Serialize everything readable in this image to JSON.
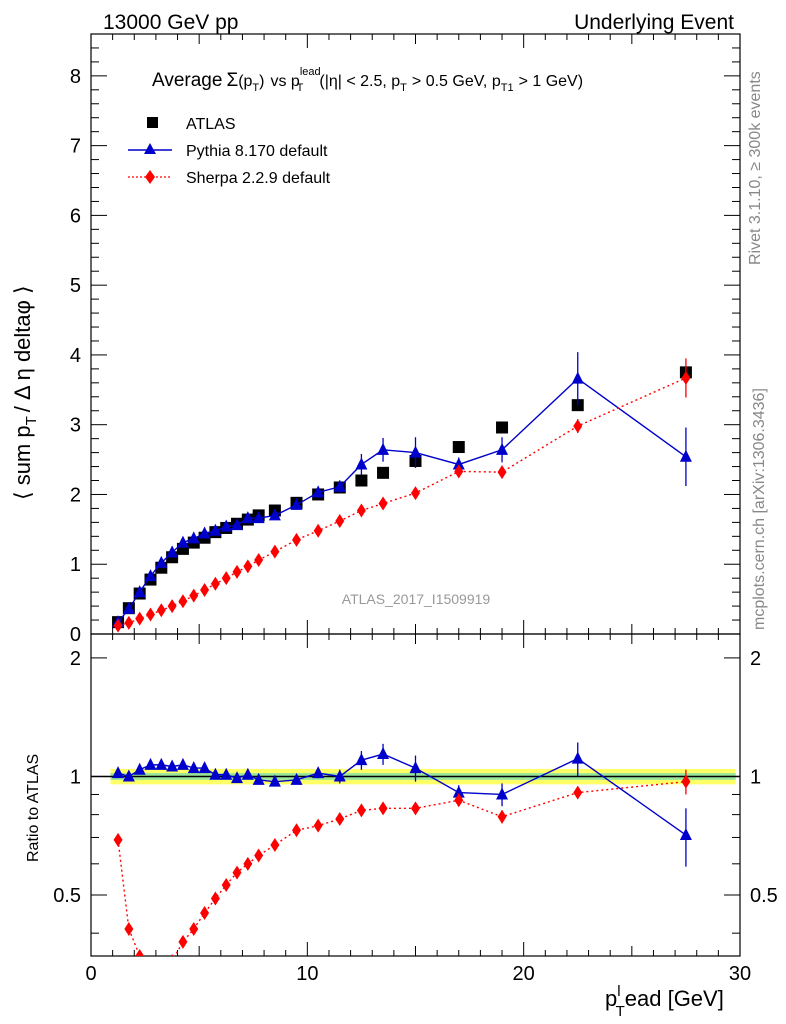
{
  "header": {
    "left": "13000 GeV pp",
    "right": "Underlying Event"
  },
  "side": {
    "rivet": "Rivet 3.1.10, ≥ 300k events",
    "mcplots": "mcplots.cern.ch [arXiv:1306.3436]"
  },
  "watermark": "ATLAS_2017_I1509919",
  "title": {
    "prefix": "Average",
    "sigma": "Σ",
    "p": "(p",
    "p_sub": "T",
    "close": ")",
    "vs": "vs p",
    "lead_sub": "T",
    "lead_sup": "lead",
    "cut_open": "(|η| < 2.5, p",
    "cut_sub1": "T",
    "cut_mid": "> 0.5 GeV, p",
    "cut_sub2": "T1",
    "cut_end": "> 1 GeV)"
  },
  "axes": {
    "ylabel_main": "⟨ sum p",
    "ylabel_main_sub": "T",
    "ylabel_main_rest": "/ Δ η deltaφ ⟩",
    "ylabel_ratio": "Ratio to ATLAS",
    "xlabel_p": "p",
    "xlabel_sub": "T",
    "xlabel_sup": "l",
    "xlabel_rest": "ead [GeV]"
  },
  "colors": {
    "atlas": "#000000",
    "pythia": "#0000cc",
    "sherpa": "#ff0000",
    "band_outer": "#ffff66",
    "band_inner": "#99e699",
    "refline": "#000000"
  },
  "chart_data": {
    "type": "scatter",
    "xlim": [
      0,
      30
    ],
    "main": {
      "ylim": [
        0,
        8.6
      ],
      "yticks": [
        0,
        1,
        2,
        3,
        4,
        5,
        6,
        7,
        8
      ]
    },
    "ratio": {
      "ylim": [
        0.35,
        2.3
      ],
      "log_scale": true,
      "yticks": [
        0.5,
        1,
        2
      ]
    },
    "xticks": [
      0,
      10,
      20,
      30
    ],
    "series": [
      {
        "name": "ATLAS",
        "marker": "square",
        "x": [
          1.25,
          1.75,
          2.25,
          2.75,
          3.25,
          3.75,
          4.25,
          4.75,
          5.25,
          5.75,
          6.25,
          6.75,
          7.25,
          7.75,
          8.5,
          9.5,
          10.5,
          11.5,
          12.5,
          13.5,
          15,
          17,
          19,
          22.5,
          27.5
        ],
        "y": [
          0.17,
          0.37,
          0.58,
          0.78,
          0.95,
          1.1,
          1.22,
          1.31,
          1.38,
          1.46,
          1.52,
          1.58,
          1.64,
          1.7,
          1.77,
          1.88,
          2.0,
          2.1,
          2.2,
          2.31,
          2.48,
          2.68,
          2.96,
          3.28,
          3.75
        ]
      },
      {
        "name": "Pythia 8.170 default",
        "marker": "triangle",
        "x": [
          1.25,
          1.75,
          2.25,
          2.75,
          3.25,
          3.75,
          4.25,
          4.75,
          5.25,
          5.75,
          6.25,
          6.75,
          7.25,
          7.75,
          8.5,
          9.5,
          10.5,
          11.5,
          12.5,
          13.5,
          15,
          17,
          19,
          22.5,
          27.5
        ],
        "y": [
          0.17,
          0.36,
          0.6,
          0.83,
          1.02,
          1.17,
          1.31,
          1.37,
          1.44,
          1.48,
          1.54,
          1.56,
          1.66,
          1.66,
          1.7,
          1.85,
          2.03,
          2.11,
          2.43,
          2.64,
          2.6,
          2.43,
          2.64,
          3.66,
          2.54
        ],
        "err": [
          0.02,
          0.02,
          0.03,
          0.03,
          0.03,
          0.04,
          0.04,
          0.04,
          0.04,
          0.04,
          0.04,
          0.04,
          0.04,
          0.04,
          0.05,
          0.06,
          0.08,
          0.09,
          0.15,
          0.17,
          0.22,
          0.1,
          0.18,
          0.38,
          0.42
        ]
      },
      {
        "name": "Sherpa 2.2.9 default",
        "marker": "diamond",
        "x": [
          1.25,
          1.75,
          2.25,
          2.75,
          3.25,
          3.75,
          4.25,
          4.75,
          5.25,
          5.75,
          6.25,
          6.75,
          7.25,
          7.75,
          8.5,
          9.5,
          10.5,
          11.5,
          12.5,
          13.5,
          15,
          17,
          19,
          22.5,
          27.5
        ],
        "y": [
          0.12,
          0.16,
          0.22,
          0.28,
          0.34,
          0.4,
          0.47,
          0.55,
          0.63,
          0.72,
          0.8,
          0.89,
          0.97,
          1.06,
          1.18,
          1.35,
          1.48,
          1.62,
          1.77,
          1.87,
          2.02,
          2.33,
          2.32,
          2.98,
          3.67
        ],
        "err": [
          0.01,
          0.01,
          0.01,
          0.01,
          0.01,
          0.01,
          0.01,
          0.01,
          0.01,
          0.01,
          0.01,
          0.01,
          0.01,
          0.01,
          0.02,
          0.02,
          0.03,
          0.03,
          0.04,
          0.04,
          0.05,
          0.08,
          0.08,
          0.1,
          0.28
        ]
      }
    ],
    "ratio_series": [
      {
        "name": "Pythia 8.170 default",
        "x": [
          1.25,
          1.75,
          2.25,
          2.75,
          3.25,
          3.75,
          4.25,
          4.75,
          5.25,
          5.75,
          6.25,
          6.75,
          7.25,
          7.75,
          8.5,
          9.5,
          10.5,
          11.5,
          12.5,
          13.5,
          15,
          17,
          19,
          22.5,
          27.5
        ],
        "y": [
          1.02,
          1.0,
          1.04,
          1.07,
          1.07,
          1.06,
          1.07,
          1.05,
          1.05,
          1.01,
          1.01,
          0.99,
          1.01,
          0.98,
          0.97,
          0.98,
          1.02,
          1.0,
          1.1,
          1.14,
          1.05,
          0.91,
          0.9,
          1.11,
          0.71
        ],
        "err": [
          0.02,
          0.02,
          0.02,
          0.02,
          0.02,
          0.02,
          0.02,
          0.02,
          0.02,
          0.02,
          0.02,
          0.02,
          0.02,
          0.02,
          0.02,
          0.02,
          0.03,
          0.04,
          0.06,
          0.07,
          0.08,
          0.04,
          0.06,
          0.11,
          0.12
        ]
      },
      {
        "name": "Sherpa 2.2.9 default",
        "x": [
          1.25,
          1.75,
          2.25,
          2.75,
          3.25,
          3.75,
          4.25,
          4.75,
          5.25,
          5.75,
          6.25,
          6.75,
          7.25,
          7.75,
          8.5,
          9.5,
          10.5,
          11.5,
          12.5,
          13.5,
          15,
          17,
          19,
          22.5,
          27.5
        ],
        "y": [
          0.69,
          0.41,
          0.35,
          0.33,
          0.33,
          0.34,
          0.38,
          0.41,
          0.45,
          0.49,
          0.53,
          0.57,
          0.6,
          0.63,
          0.67,
          0.73,
          0.75,
          0.78,
          0.82,
          0.83,
          0.83,
          0.87,
          0.79,
          0.91,
          0.97
        ],
        "err": [
          0.01,
          0.01,
          0.01,
          0.01,
          0.01,
          0.01,
          0.01,
          0.01,
          0.01,
          0.01,
          0.01,
          0.01,
          0.01,
          0.01,
          0.01,
          0.01,
          0.01,
          0.01,
          0.02,
          0.02,
          0.02,
          0.03,
          0.03,
          0.03,
          0.07
        ]
      }
    ]
  }
}
